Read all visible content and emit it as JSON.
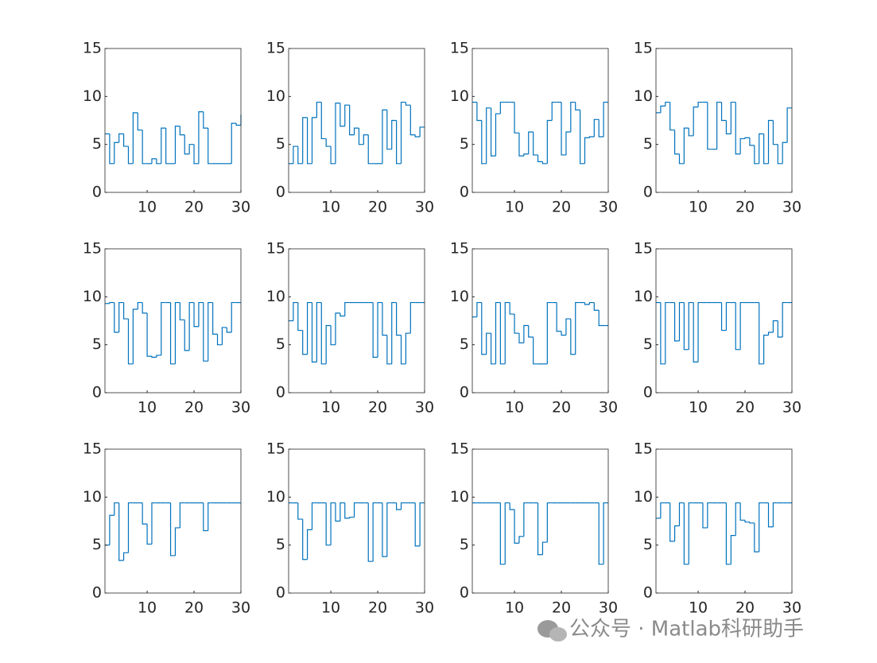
{
  "chart_data": [
    {
      "type": "stairs",
      "color": "#0072bd",
      "x": [
        1,
        2,
        3,
        4,
        5,
        6,
        7,
        8,
        9,
        10,
        11,
        12,
        13,
        14,
        15,
        16,
        17,
        18,
        19,
        20,
        21,
        22,
        23,
        24,
        25,
        26,
        27,
        28,
        29,
        30
      ],
      "values": [
        6.1,
        3.0,
        5.2,
        6.1,
        4.8,
        3.0,
        8.3,
        6.5,
        3.0,
        3.0,
        3.5,
        3.0,
        6.7,
        3.0,
        3.0,
        6.9,
        6.0,
        4.0,
        5.0,
        3.0,
        8.4,
        6.7,
        3.0,
        3.0,
        3.0,
        3.0,
        3.0,
        7.2,
        7.0,
        8.1
      ],
      "xlim": [
        1,
        30
      ],
      "xticks": [
        10,
        20,
        30
      ],
      "ylim": [
        0,
        15
      ],
      "yticks": [
        0,
        5,
        10,
        15
      ]
    },
    {
      "type": "stairs",
      "color": "#0072bd",
      "x": [
        1,
        2,
        3,
        4,
        5,
        6,
        7,
        8,
        9,
        10,
        11,
        12,
        13,
        14,
        15,
        16,
        17,
        18,
        19,
        20,
        21,
        22,
        23,
        24,
        25,
        26,
        27,
        28,
        29,
        30
      ],
      "values": [
        3.0,
        4.8,
        3.0,
        7.8,
        3.0,
        7.8,
        9.4,
        5.6,
        4.8,
        3.0,
        9.3,
        6.9,
        9.1,
        6.0,
        6.7,
        5.0,
        6.0,
        3.0,
        3.0,
        3.0,
        8.6,
        4.5,
        7.5,
        3.0,
        9.4,
        9.1,
        6.0,
        5.8,
        6.8,
        6.8
      ],
      "xlim": [
        1,
        30
      ],
      "xticks": [
        10,
        20,
        30
      ],
      "ylim": [
        0,
        15
      ],
      "yticks": [
        0,
        5,
        10,
        15
      ]
    },
    {
      "type": "stairs",
      "color": "#0072bd",
      "x": [
        1,
        2,
        3,
        4,
        5,
        6,
        7,
        8,
        9,
        10,
        11,
        12,
        13,
        14,
        15,
        16,
        17,
        18,
        19,
        20,
        21,
        22,
        23,
        24,
        25,
        26,
        27,
        28,
        29,
        30
      ],
      "values": [
        9.4,
        7.5,
        3.0,
        8.8,
        3.8,
        8.2,
        9.4,
        9.4,
        9.4,
        6.2,
        3.8,
        4.0,
        6.3,
        3.9,
        3.2,
        3.0,
        7.5,
        9.4,
        9.4,
        3.9,
        6.3,
        9.4,
        8.6,
        3.0,
        5.7,
        5.8,
        7.6,
        5.8,
        9.4,
        9.4
      ],
      "xlim": [
        1,
        30
      ],
      "xticks": [
        10,
        20,
        30
      ],
      "ylim": [
        0,
        15
      ],
      "yticks": [
        0,
        5,
        10,
        15
      ]
    },
    {
      "type": "stairs",
      "color": "#0072bd",
      "x": [
        1,
        2,
        3,
        4,
        5,
        6,
        7,
        8,
        9,
        10,
        11,
        12,
        13,
        14,
        15,
        16,
        17,
        18,
        19,
        20,
        21,
        22,
        23,
        24,
        25,
        26,
        27,
        28,
        29,
        30
      ],
      "values": [
        8.3,
        9.0,
        9.4,
        6.5,
        4.0,
        3.0,
        6.7,
        5.9,
        8.9,
        9.4,
        9.4,
        4.5,
        4.5,
        9.4,
        7.5,
        6.1,
        9.4,
        4.0,
        5.6,
        5.7,
        4.9,
        3.0,
        6.1,
        3.0,
        7.5,
        5.0,
        3.0,
        5.2,
        8.8,
        8.8
      ],
      "xlim": [
        1,
        30
      ],
      "xticks": [
        10,
        20,
        30
      ],
      "ylim": [
        0,
        15
      ],
      "yticks": [
        0,
        5,
        10,
        15
      ]
    },
    {
      "type": "stairs",
      "color": "#0072bd",
      "x": [
        1,
        2,
        3,
        4,
        5,
        6,
        7,
        8,
        9,
        10,
        11,
        12,
        13,
        14,
        15,
        16,
        17,
        18,
        19,
        20,
        21,
        22,
        23,
        24,
        25,
        26,
        27,
        28,
        29,
        30
      ],
      "values": [
        9.3,
        9.4,
        6.3,
        9.4,
        7.7,
        3.0,
        8.7,
        9.4,
        8.3,
        3.8,
        3.7,
        3.9,
        9.4,
        9.4,
        3.0,
        9.4,
        7.6,
        4.4,
        9.4,
        6.9,
        9.4,
        3.3,
        9.4,
        6.1,
        5.0,
        6.8,
        6.3,
        9.4,
        9.4,
        9.4
      ],
      "xlim": [
        1,
        30
      ],
      "xticks": [
        10,
        20,
        30
      ],
      "ylim": [
        0,
        15
      ],
      "yticks": [
        0,
        5,
        10,
        15
      ]
    },
    {
      "type": "stairs",
      "color": "#0072bd",
      "x": [
        1,
        2,
        3,
        4,
        5,
        6,
        7,
        8,
        9,
        10,
        11,
        12,
        13,
        14,
        15,
        16,
        17,
        18,
        19,
        20,
        21,
        22,
        23,
        24,
        25,
        26,
        27,
        28,
        29,
        30
      ],
      "values": [
        7.5,
        9.4,
        6.5,
        4.0,
        9.4,
        3.2,
        9.4,
        3.0,
        7.0,
        5.0,
        8.3,
        8.0,
        9.4,
        9.4,
        9.4,
        9.4,
        9.4,
        9.4,
        3.7,
        9.4,
        6.0,
        3.0,
        9.4,
        6.0,
        3.0,
        6.2,
        9.4,
        9.4,
        9.4,
        9.4
      ],
      "xlim": [
        1,
        30
      ],
      "xticks": [
        10,
        20,
        30
      ],
      "ylim": [
        0,
        15
      ],
      "yticks": [
        0,
        5,
        10,
        15
      ]
    },
    {
      "type": "stairs",
      "color": "#0072bd",
      "x": [
        1,
        2,
        3,
        4,
        5,
        6,
        7,
        8,
        9,
        10,
        11,
        12,
        13,
        14,
        15,
        16,
        17,
        18,
        19,
        20,
        21,
        22,
        23,
        24,
        25,
        26,
        27,
        28,
        29,
        30
      ],
      "values": [
        7.9,
        9.4,
        4.0,
        6.2,
        3.0,
        9.4,
        3.0,
        9.4,
        8.2,
        6.2,
        5.2,
        7.0,
        5.8,
        3.0,
        3.0,
        3.0,
        9.4,
        9.4,
        6.4,
        6.0,
        7.7,
        4.0,
        9.4,
        9.4,
        9.2,
        9.4,
        8.6,
        7.0,
        7.0,
        7.0
      ],
      "xlim": [
        1,
        30
      ],
      "xticks": [
        10,
        20,
        30
      ],
      "ylim": [
        0,
        15
      ],
      "yticks": [
        0,
        5,
        10,
        15
      ]
    },
    {
      "type": "stairs",
      "color": "#0072bd",
      "x": [
        1,
        2,
        3,
        4,
        5,
        6,
        7,
        8,
        9,
        10,
        11,
        12,
        13,
        14,
        15,
        16,
        17,
        18,
        19,
        20,
        21,
        22,
        23,
        24,
        25,
        26,
        27,
        28,
        29,
        30
      ],
      "values": [
        9.4,
        3.0,
        9.4,
        9.4,
        5.4,
        9.4,
        4.5,
        9.4,
        3.2,
        9.4,
        9.4,
        9.4,
        9.4,
        9.4,
        6.5,
        9.4,
        9.4,
        4.5,
        9.4,
        9.4,
        9.4,
        9.4,
        3.0,
        6.0,
        6.3,
        7.5,
        5.8,
        9.4,
        9.4,
        9.4
      ],
      "xlim": [
        1,
        30
      ],
      "xticks": [
        10,
        20,
        30
      ],
      "ylim": [
        0,
        15
      ],
      "yticks": [
        0,
        5,
        10,
        15
      ]
    },
    {
      "type": "stairs",
      "color": "#0072bd",
      "x": [
        1,
        2,
        3,
        4,
        5,
        6,
        7,
        8,
        9,
        10,
        11,
        12,
        13,
        14,
        15,
        16,
        17,
        18,
        19,
        20,
        21,
        22,
        23,
        24,
        25,
        26,
        27,
        28,
        29,
        30
      ],
      "values": [
        5.0,
        8.1,
        9.4,
        3.4,
        4.2,
        9.4,
        9.4,
        9.4,
        7.2,
        5.1,
        9.4,
        9.4,
        9.4,
        9.4,
        3.9,
        6.8,
        9.4,
        9.4,
        9.4,
        9.4,
        9.4,
        6.5,
        9.4,
        9.4,
        9.4,
        9.4,
        9.4,
        9.4,
        9.4,
        9.4
      ],
      "xlim": [
        1,
        30
      ],
      "xticks": [
        10,
        20,
        30
      ],
      "ylim": [
        0,
        15
      ],
      "yticks": [
        0,
        5,
        10,
        15
      ]
    },
    {
      "type": "stairs",
      "color": "#0072bd",
      "x": [
        1,
        2,
        3,
        4,
        5,
        6,
        7,
        8,
        9,
        10,
        11,
        12,
        13,
        14,
        15,
        16,
        17,
        18,
        19,
        20,
        21,
        22,
        23,
        24,
        25,
        26,
        27,
        28,
        29,
        30
      ],
      "values": [
        9.4,
        9.4,
        7.7,
        3.5,
        6.6,
        9.4,
        9.4,
        9.4,
        5.0,
        9.4,
        7.5,
        9.4,
        7.8,
        7.9,
        9.4,
        9.4,
        9.4,
        3.3,
        9.4,
        9.4,
        3.8,
        9.4,
        9.4,
        8.7,
        9.4,
        9.4,
        9.4,
        4.9,
        9.4,
        9.4
      ],
      "xlim": [
        1,
        30
      ],
      "xticks": [
        10,
        20,
        30
      ],
      "ylim": [
        0,
        15
      ],
      "yticks": [
        0,
        5,
        10,
        15
      ]
    },
    {
      "type": "stairs",
      "color": "#0072bd",
      "x": [
        1,
        2,
        3,
        4,
        5,
        6,
        7,
        8,
        9,
        10,
        11,
        12,
        13,
        14,
        15,
        16,
        17,
        18,
        19,
        20,
        21,
        22,
        23,
        24,
        25,
        26,
        27,
        28,
        29,
        30
      ],
      "values": [
        9.4,
        9.4,
        9.4,
        9.4,
        9.4,
        9.4,
        3.0,
        9.4,
        8.7,
        5.2,
        5.9,
        9.4,
        9.4,
        9.4,
        4.0,
        5.3,
        9.4,
        9.4,
        9.4,
        9.4,
        9.4,
        9.4,
        9.4,
        9.4,
        9.4,
        9.4,
        9.4,
        3.0,
        9.4,
        9.4
      ],
      "xlim": [
        1,
        30
      ],
      "xticks": [
        10,
        20,
        30
      ],
      "ylim": [
        0,
        15
      ],
      "yticks": [
        0,
        5,
        10,
        15
      ]
    },
    {
      "type": "stairs",
      "color": "#0072bd",
      "x": [
        1,
        2,
        3,
        4,
        5,
        6,
        7,
        8,
        9,
        10,
        11,
        12,
        13,
        14,
        15,
        16,
        17,
        18,
        19,
        20,
        21,
        22,
        23,
        24,
        25,
        26,
        27,
        28,
        29,
        30
      ],
      "values": [
        7.8,
        9.4,
        9.4,
        5.4,
        7.0,
        9.4,
        3.0,
        9.4,
        9.4,
        9.4,
        6.8,
        9.4,
        9.4,
        9.4,
        9.4,
        3.0,
        6.0,
        9.4,
        7.6,
        7.4,
        7.3,
        4.3,
        9.4,
        9.4,
        6.9,
        9.4,
        9.4,
        9.4,
        9.4,
        9.4
      ],
      "xlim": [
        1,
        30
      ],
      "xticks": [
        10,
        20,
        30
      ],
      "ylim": [
        0,
        15
      ],
      "yticks": [
        0,
        5,
        10,
        15
      ]
    }
  ],
  "watermark": "公众号 · Matlab科研助手"
}
